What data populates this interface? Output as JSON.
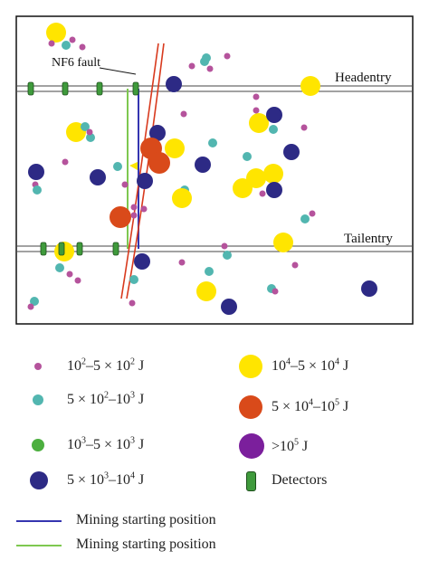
{
  "map": {
    "fault_label": "NF6 fault",
    "headentry_label": "Headentry",
    "tailentry_label": "Tailentry"
  },
  "colors": {
    "e2": "#b5539c",
    "e3": "#52b6b0",
    "e4": "#4caf3f",
    "e5": "#2d2a85",
    "e6": "#ffe500",
    "e7": "#d94a1a",
    "e8": "#7b1f9c",
    "detector": "#3f9a3c",
    "fault": "#d83a1e",
    "blue_line": "#3535b0",
    "green_line": "#7ec850"
  },
  "legend": {
    "e2": {
      "mant1": "10",
      "exp1": "2",
      "mid": "–5 × 10",
      "exp2": "2",
      "unit": " J"
    },
    "e3": {
      "pre": "5 × 10",
      "exp1": "2",
      "mid": "–10",
      "exp2": "3",
      "unit": " J"
    },
    "e4": {
      "mant1": "10",
      "exp1": "3",
      "mid": "–5 × 10",
      "exp2": "3",
      "unit": " J"
    },
    "e5": {
      "pre": "5 × 10",
      "exp1": "3",
      "mid": "–10",
      "exp2": "4",
      "unit": " J"
    },
    "e6": {
      "mant1": "10",
      "exp1": "4",
      "mid": "–5 × 10",
      "exp2": "4",
      "unit": " J"
    },
    "e7": {
      "pre": "5 × 10",
      "exp1": "4",
      "mid": "–10",
      "exp2": "5",
      "unit": " J"
    },
    "e8": {
      "pre": ">10",
      "exp1": "5",
      "unit": " J"
    },
    "detectors": "Detectors",
    "line1": "Mining starting position",
    "line2": "Mining starting position"
  }
}
